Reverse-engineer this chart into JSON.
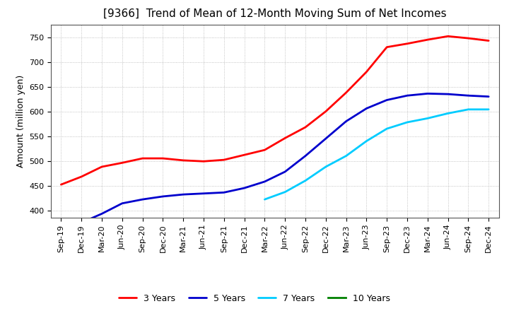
{
  "title": "[9366]  Trend of Mean of 12-Month Moving Sum of Net Incomes",
  "ylabel": "Amount (million yen)",
  "x_labels": [
    "Sep-19",
    "Dec-19",
    "Mar-20",
    "Jun-20",
    "Sep-20",
    "Dec-20",
    "Mar-21",
    "Jun-21",
    "Sep-21",
    "Dec-21",
    "Mar-22",
    "Jun-22",
    "Sep-22",
    "Dec-22",
    "Mar-23",
    "Jun-23",
    "Sep-23",
    "Dec-23",
    "Mar-24",
    "Jun-24",
    "Sep-24",
    "Dec-24"
  ],
  "series": {
    "3 Years": {
      "color": "#ff0000",
      "data_x": [
        0,
        1,
        2,
        3,
        4,
        5,
        6,
        7,
        8,
        9,
        10,
        11,
        12,
        13,
        14,
        15,
        16,
        17,
        18,
        19,
        20,
        21
      ],
      "data_y": [
        452,
        468,
        488,
        496,
        505,
        505,
        501,
        499,
        502,
        512,
        522,
        546,
        568,
        600,
        638,
        680,
        730,
        737,
        745,
        752,
        748,
        743
      ]
    },
    "5 Years": {
      "color": "#0000cd",
      "data_x": [
        1,
        2,
        3,
        4,
        5,
        6,
        7,
        8,
        9,
        10,
        11,
        12,
        13,
        14,
        15,
        16,
        17,
        18,
        19,
        20,
        21
      ],
      "data_y": [
        375,
        393,
        414,
        422,
        428,
        432,
        434,
        436,
        445,
        458,
        478,
        510,
        545,
        580,
        606,
        623,
        632,
        636,
        635,
        632,
        630
      ]
    },
    "7 Years": {
      "color": "#00ccff",
      "data_x": [
        10,
        11,
        12,
        13,
        14,
        15,
        16,
        17,
        18,
        19,
        20,
        21
      ],
      "data_y": [
        422,
        437,
        460,
        488,
        510,
        540,
        565,
        578,
        586,
        596,
        604,
        604
      ]
    },
    "10 Years": {
      "color": "#008000",
      "data_x": [],
      "data_y": []
    }
  },
  "ylim": [
    385,
    775
  ],
  "yticks": [
    400,
    450,
    500,
    550,
    600,
    650,
    700,
    750
  ],
  "background_color": "#ffffff",
  "grid_color": "#aaaaaa",
  "title_fontsize": 11,
  "axis_fontsize": 8,
  "ylabel_fontsize": 9,
  "legend_fontsize": 9,
  "linewidth": 2.0
}
